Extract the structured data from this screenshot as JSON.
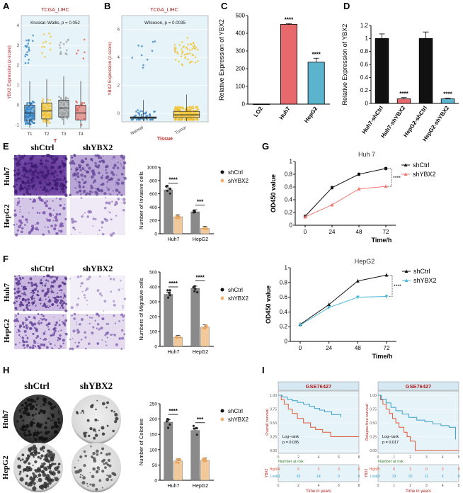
{
  "chart_data": [
    {
      "panel": "A",
      "type": "boxplot",
      "title": "TCGA_LIHC",
      "annotation": "Kruskal–Wallis, p = 0.052",
      "xlabel": "T",
      "ylabel": "YBX2 Expression (z-score)",
      "categories": [
        "T1",
        "T2",
        "T3",
        "T4"
      ],
      "median": [
        -0.4,
        -0.3,
        -0.15,
        -0.4
      ],
      "q1": [
        -0.75,
        -0.7,
        -0.6,
        -0.75
      ],
      "q3": [
        0.0,
        0.1,
        0.25,
        0.0
      ],
      "colors": [
        "#2e7fc1",
        "#f2c12e",
        "#9a9a9a",
        "#e0564b"
      ],
      "yticks": [
        -1,
        0,
        1,
        2,
        3,
        4
      ],
      "ylim": [
        -1.2,
        4.5
      ]
    },
    {
      "panel": "B",
      "type": "boxplot",
      "title": "TCGA_LIHC",
      "annotation": "Wilcoxon, p = 0.0035",
      "xlabel": "Tissue",
      "ylabel": "YBX2 Expression (z-score)",
      "categories": [
        "Normal",
        "Tumor"
      ],
      "median": [
        -0.3,
        -0.1
      ],
      "q1": [
        -0.35,
        -0.3
      ],
      "q3": [
        -0.25,
        0.15
      ],
      "colors": [
        "#2e7fc1",
        "#f2c12e"
      ],
      "yticks": [
        0,
        2,
        4,
        6
      ],
      "ylim": [
        -0.6,
        7
      ]
    },
    {
      "panel": "C",
      "type": "bar",
      "categories": [
        "LO2",
        "Huh7",
        "HepG2"
      ],
      "values": [
        1,
        450,
        237
      ],
      "errors": [
        0,
        5,
        22
      ],
      "colors": [
        "#f2f2f2",
        "#e8696b",
        "#5ab4cd"
      ],
      "significance": [
        "",
        "****",
        "****"
      ],
      "ylabel": "Relative Expression of YBX2",
      "yticks": [
        0,
        100,
        200,
        300,
        400,
        500
      ],
      "ylim": [
        0,
        500
      ]
    },
    {
      "panel": "D",
      "type": "bar",
      "categories": [
        "Huh7-shCtrl",
        "Huh7-shYBX2",
        "HepG2-shCtrl",
        "HepG2-shYBX2"
      ],
      "values": [
        1.0,
        0.07,
        1.0,
        0.07
      ],
      "errors": [
        0.07,
        0.02,
        0.1,
        0.01
      ],
      "colors": [
        "#111111",
        "#e8696b",
        "#111111",
        "#5ab4cd"
      ],
      "significance": [
        "",
        "****",
        "",
        "****"
      ],
      "ylabel": "Relative Expression of YBX2",
      "yticks": [
        0.0,
        0.2,
        0.4,
        0.6,
        0.8,
        1.0,
        1.2
      ],
      "ylim": [
        0,
        1.2
      ]
    },
    {
      "panel": "E",
      "type": "bar",
      "ylabel": "Number of Invasive cells",
      "categories": [
        "Huh7",
        "HepG2"
      ],
      "series": [
        {
          "name": "shCtrl",
          "values": [
            660,
            330
          ],
          "color": "#8a8a8a"
        },
        {
          "name": "shYBX2",
          "values": [
            255,
            80
          ],
          "color": "#f2c99a"
        }
      ],
      "significance": [
        "****",
        "***"
      ],
      "yticks": [
        0,
        200,
        400,
        600,
        800,
        1000
      ],
      "ylim": [
        0,
        1000
      ]
    },
    {
      "panel": "F",
      "type": "bar",
      "ylabel": "Numbers of Migrative cells",
      "categories": [
        "Huh7",
        "HepG2"
      ],
      "series": [
        {
          "name": "shCtrl",
          "values": [
            350,
            390
          ],
          "color": "#8a8a8a"
        },
        {
          "name": "shYBX2",
          "values": [
            60,
            130
          ],
          "color": "#f2c99a"
        }
      ],
      "significance": [
        "****",
        "****"
      ],
      "yticks": [
        0,
        100,
        200,
        300,
        400,
        500
      ],
      "ylim": [
        0,
        500
      ]
    },
    {
      "panel": "G1",
      "type": "line",
      "title": "Huh 7",
      "xlabel": "Time/h",
      "ylabel": "OD450 value",
      "x": [
        0,
        24,
        48,
        72
      ],
      "series": [
        {
          "name": "shCtrl",
          "values": [
            0.14,
            0.59,
            0.8,
            0.89
          ],
          "color": "#111111",
          "marker": "square"
        },
        {
          "name": "shYBX2",
          "values": [
            0.13,
            0.32,
            0.57,
            0.61
          ],
          "color": "#f07670",
          "marker": "triangle"
        }
      ],
      "significance": "****",
      "yticks": [
        0.0,
        0.2,
        0.4,
        0.6,
        0.8,
        1.0
      ],
      "ylim": [
        0,
        1.0
      ]
    },
    {
      "panel": "G2",
      "type": "line",
      "title": "HepG2",
      "xlabel": "Time/h",
      "ylabel": "OD450 value",
      "x": [
        0,
        24,
        48,
        72
      ],
      "series": [
        {
          "name": "shCtrl",
          "values": [
            0.23,
            0.5,
            0.82,
            0.9
          ],
          "color": "#111111",
          "marker": "triangle"
        },
        {
          "name": "shYBX2",
          "values": [
            0.22,
            0.46,
            0.6,
            0.61
          ],
          "color": "#4db8d6",
          "marker": "triangle-down"
        }
      ],
      "significance": "****",
      "yticks": [
        0.0,
        0.2,
        0.4,
        0.6,
        0.8,
        1.0
      ],
      "ylim": [
        0,
        1.0
      ]
    },
    {
      "panel": "H",
      "type": "bar",
      "ylabel": "Number of Colonies",
      "categories": [
        "Huh7",
        "HepG2"
      ],
      "series": [
        {
          "name": "shCtrl",
          "values": [
            190,
            163
          ],
          "color": "#8a8a8a"
        },
        {
          "name": "shYBX2",
          "values": [
            63,
            65
          ],
          "color": "#f2c99a"
        }
      ],
      "significance": [
        "****",
        "***"
      ],
      "yticks": [
        0,
        50,
        100,
        150,
        200,
        250
      ],
      "ylim": [
        0,
        250
      ]
    },
    {
      "panel": "I1",
      "type": "line",
      "title": "GSE76427",
      "xlabel": "Time in years",
      "ylabel": "Overall survival",
      "annotation": [
        "Log−rank",
        "p = 0.035"
      ],
      "xticks": [
        0,
        2,
        4,
        6,
        8
      ],
      "yticks": [
        "0.00",
        "0.25",
        "0.50",
        "0.75",
        "1.00"
      ],
      "legend_title": "YBX2",
      "series": [
        {
          "name": "High",
          "color": "#e05a3a",
          "times": [
            0,
            0.3,
            0.6,
            1,
            1.4,
            1.9,
            2.5,
            3.2,
            3.7,
            4.4,
            5.2,
            8
          ],
          "surv": [
            1,
            0.92,
            0.84,
            0.75,
            0.67,
            0.58,
            0.5,
            0.42,
            0.38,
            0.33,
            0.25,
            0.25
          ]
        },
        {
          "name": "Low",
          "color": "#3aa0c8",
          "times": [
            0,
            0.4,
            0.9,
            1.4,
            1.9,
            2.5,
            3.1,
            3.6,
            4.1,
            4.6,
            5.3,
            6.2
          ],
          "surv": [
            1,
            0.97,
            0.93,
            0.9,
            0.87,
            0.84,
            0.8,
            0.76,
            0.73,
            0.7,
            0.65,
            0.6
          ]
        }
      ],
      "risk_table": {
        "title": "Number at risk",
        "rows": [
          {
            "label": "High",
            "values": [
              "24",
              "6",
              "3",
              "0",
              "0"
            ]
          },
          {
            "label": "Low",
            "values": [
              "91",
              "35",
              "14",
              "0",
              "0"
            ]
          }
        ]
      }
    },
    {
      "panel": "I2",
      "type": "line",
      "title": "GSE76427",
      "xlabel": "Time in years",
      "ylabel": "Relapse-free survival",
      "annotation": [
        "Log−rank",
        "p = 0.017"
      ],
      "xticks": [
        0,
        1,
        2,
        3,
        4,
        5
      ],
      "yticks": [
        "0.00",
        "0.25",
        "0.50",
        "0.75",
        "1.00"
      ],
      "legend_title": "YBX2",
      "series": [
        {
          "name": "High",
          "color": "#e05a3a",
          "times": [
            0,
            0.15,
            0.3,
            0.5,
            0.7,
            0.9,
            1.1,
            1.3,
            1.6,
            1.8,
            2.0,
            2.3,
            5
          ],
          "surv": [
            1,
            0.92,
            0.84,
            0.75,
            0.67,
            0.58,
            0.5,
            0.42,
            0.33,
            0.25,
            0.17,
            0.0,
            0.0
          ]
        },
        {
          "name": "Low",
          "color": "#3aa0c8",
          "times": [
            0,
            0.2,
            0.5,
            0.8,
            1.1,
            1.5,
            1.9,
            2.4,
            2.9,
            3.4,
            3.9,
            4.4,
            4.8
          ],
          "surv": [
            1,
            0.93,
            0.86,
            0.78,
            0.72,
            0.66,
            0.6,
            0.55,
            0.52,
            0.48,
            0.45,
            0.42,
            0.2
          ]
        }
      ],
      "risk_table": {
        "title": "Number at risk",
        "rows": [
          {
            "label": "High",
            "values": [
              "25",
              "6",
              "2",
              "0",
              "0",
              "0"
            ]
          },
          {
            "label": "Low",
            "values": [
              "63",
              "33",
              "20",
              "11",
              "6",
              "0"
            ]
          }
        ]
      }
    }
  ],
  "panels": [
    "A",
    "B",
    "C",
    "D",
    "E",
    "F",
    "G",
    "H",
    "I"
  ],
  "image_labels": {
    "shCtrl": "shCtrl",
    "shYBX2": "shYBX2",
    "rows_EF": [
      "Huh7",
      "HepG2"
    ],
    "rows_H": [
      "Huh7",
      "HepG2"
    ]
  },
  "figure_colors": {
    "stain": "#6b3f9c",
    "panel_bg": "#ffffff"
  }
}
